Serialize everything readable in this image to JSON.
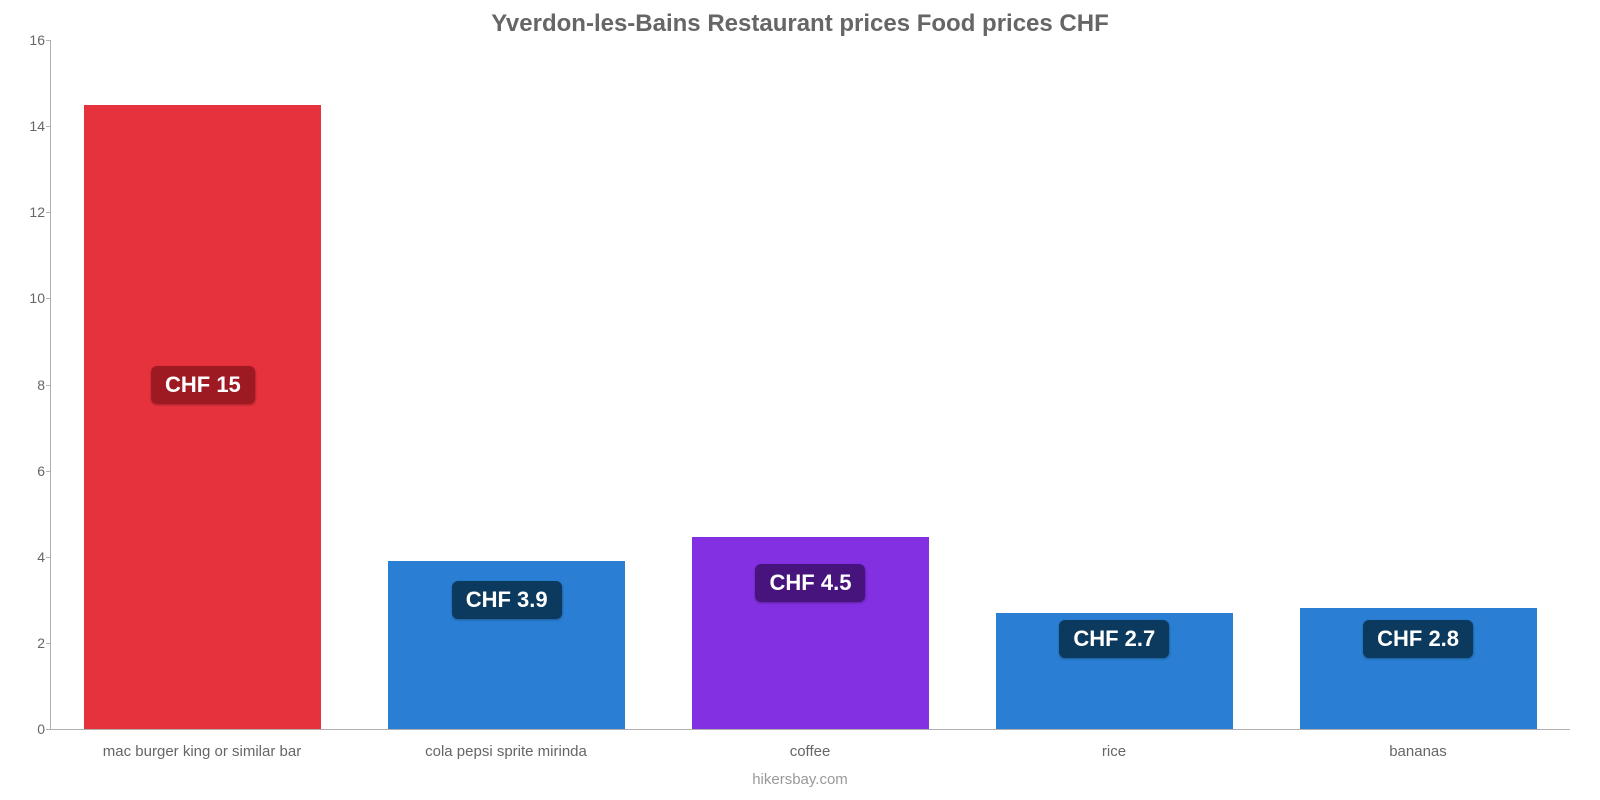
{
  "chart": {
    "type": "bar",
    "title": "Yverdon-les-Bains Restaurant prices Food prices CHF",
    "title_color": "#666666",
    "title_fontsize": 24,
    "background_color": "#ffffff",
    "axis_color": "#b0b0b0",
    "tick_label_color": "#666666",
    "tick_fontsize": 14,
    "xlabel_fontsize": 15,
    "ylim_min": 0,
    "ylim_max": 16,
    "ytick_step": 2,
    "yticks": [
      0,
      2,
      4,
      6,
      8,
      10,
      12,
      14,
      16
    ],
    "bar_width_pct": 78,
    "categories": [
      "mac burger king or similar bar",
      "cola pepsi sprite mirinda",
      "coffee",
      "rice",
      "bananas"
    ],
    "values": [
      14.5,
      3.9,
      4.45,
      2.7,
      2.8
    ],
    "value_labels": [
      "CHF 15",
      "CHF 3.9",
      "CHF 4.5",
      "CHF 2.7",
      "CHF 2.8"
    ],
    "bar_colors": [
      "#e6323c",
      "#2a7fd4",
      "#8230e2",
      "#2a7fd4",
      "#2a7fd4"
    ],
    "badge_colors": [
      "#9e1a22",
      "#0c3a5e",
      "#47147e",
      "#0c3a5e",
      "#0c3a5e"
    ],
    "badge_text_color": "#ffffff",
    "badge_fontsize": 22,
    "badge_y_values": [
      8,
      3,
      3.4,
      2.1,
      2.1
    ],
    "source": "hikersbay.com",
    "source_color": "#999999"
  }
}
